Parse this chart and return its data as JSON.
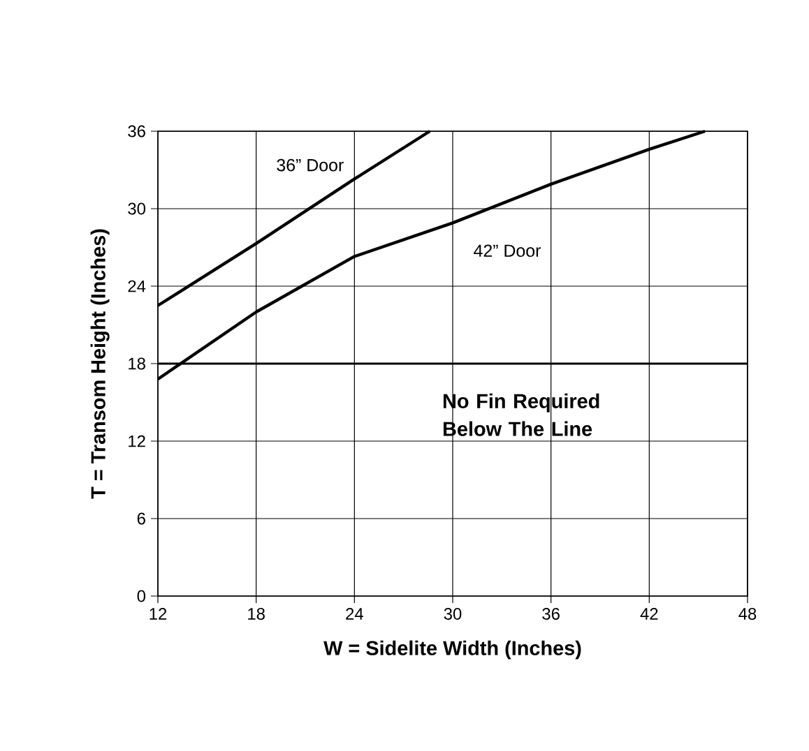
{
  "chart_data": {
    "type": "line",
    "xlabel": "W = Sidelite Width (Inches)",
    "ylabel": "T = Transom Height (Inches)",
    "xlim": [
      12,
      48
    ],
    "xticks": [
      12,
      18,
      24,
      30,
      36,
      42,
      48
    ],
    "ylim": [
      0,
      36
    ],
    "yticks": [
      0,
      6,
      12,
      18,
      24,
      30,
      36
    ],
    "grid": true,
    "legend": false,
    "marker": "none",
    "line_style": "solid",
    "series": [
      {
        "name": "36” Door",
        "color": "#000000",
        "x": [
          12,
          18,
          24,
          28.6
        ],
        "values": [
          22.5,
          27.3,
          32.3,
          36
        ]
      },
      {
        "name": "42” Door",
        "color": "#000000",
        "x": [
          12,
          18,
          24,
          30,
          36,
          42,
          45.4
        ],
        "values": [
          16.8,
          22.0,
          26.3,
          28.9,
          31.9,
          34.6,
          36
        ]
      }
    ],
    "ref_lines": [
      {
        "axis": "y",
        "value": 18,
        "color": "#000000",
        "line_style": "solid"
      }
    ],
    "annotations": [
      "No Fin Required Below The Line"
    ]
  }
}
